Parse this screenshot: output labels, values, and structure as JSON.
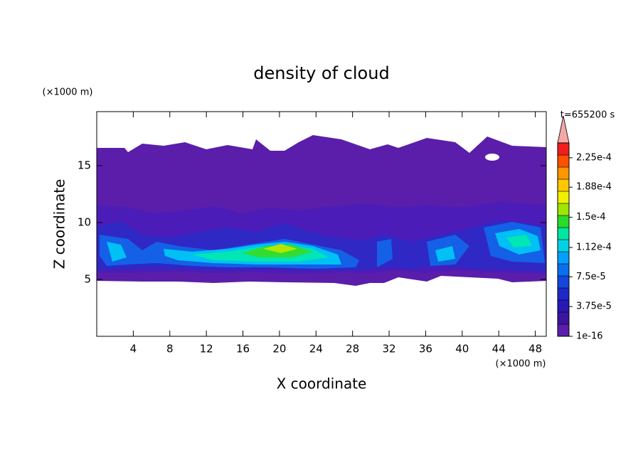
{
  "chart_data": {
    "type": "contour",
    "title": "density of cloud",
    "x_label": "X coordinate",
    "y_label": "Z coordinate",
    "x_unit": "(×1000 m)",
    "y_unit": "(×1000 m)",
    "annotation": "t=655200 s",
    "xlim": [
      0,
      49.2
    ],
    "xticks": [
      4,
      8,
      12,
      16,
      20,
      24,
      28,
      32,
      36,
      40,
      44,
      48
    ],
    "ylim": [
      0,
      19.75
    ],
    "yticks": [
      5,
      10,
      15
    ],
    "colorbar": {
      "lim": [
        0,
        0.00024375
      ],
      "colors": [
        "#5a1eaa",
        "#3c14a0",
        "#2818b4",
        "#1e28c8",
        "#1446dc",
        "#0a6ef0",
        "#00a0ff",
        "#00d2e6",
        "#00e6a0",
        "#28dc28",
        "#a0e600",
        "#f0f000",
        "#ffc800",
        "#ff9600",
        "#ff5000",
        "#f01e1e"
      ],
      "ticks": [
        {
          "value": 1e-16,
          "label": "1e-16"
        },
        {
          "value": 3.75e-05,
          "label": "3.75e-5"
        },
        {
          "value": 7.5e-05,
          "label": "7.5e-5"
        },
        {
          "value": 0.000112,
          "label": "1.12e-4"
        },
        {
          "value": 0.00015,
          "label": "1.5e-4"
        },
        {
          "value": 0.000188,
          "label": "1.88e-4"
        },
        {
          "value": 0.000225,
          "label": "2.25e-4"
        }
      ],
      "extend_color": "#f4a8a8"
    }
  }
}
